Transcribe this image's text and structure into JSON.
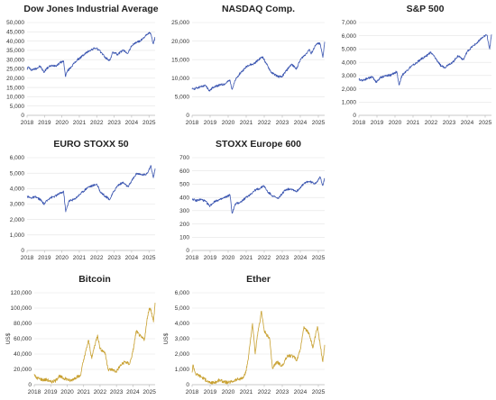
{
  "chart_data": [
    {
      "type": "line",
      "title": "Dow Jones Industrial Average",
      "ylabel": "",
      "ylim": [
        0,
        50000
      ],
      "yticks": [
        0,
        5000,
        10000,
        15000,
        20000,
        25000,
        30000,
        35000,
        40000,
        45000,
        50000
      ],
      "ytick_labels": [
        "0",
        "5,000",
        "10,000",
        "15,000",
        "20,000",
        "25,000",
        "30,000",
        "35,000",
        "40,000",
        "45,000",
        "50,000"
      ],
      "xticks": [
        2018,
        2019,
        2020,
        2021,
        2022,
        2023,
        2024,
        2025
      ],
      "xtick_labels": [
        "2018",
        "2019",
        "2020",
        "2021",
        "2022",
        "2023",
        "2024",
        "2025"
      ],
      "xlim": [
        2018,
        2025.35
      ],
      "color": "#3a55b0",
      "series": [
        {
          "x": [
            2018.0,
            2018.08,
            2018.2,
            2018.4,
            2018.6,
            2018.75,
            2018.97,
            2019.1,
            2019.3,
            2019.5,
            2019.7,
            2019.9,
            2020.1,
            2020.2,
            2020.3,
            2020.5,
            2020.7,
            2020.9,
            2021.0,
            2021.3,
            2021.6,
            2021.9,
            2022.0,
            2022.3,
            2022.5,
            2022.75,
            2022.9,
            2023.0,
            2023.2,
            2023.5,
            2023.8,
            2024.0,
            2024.3,
            2024.5,
            2024.7,
            2024.9,
            2025.0,
            2025.1,
            2025.25,
            2025.35
          ],
          "y": [
            25000,
            26200,
            24500,
            24800,
            25600,
            26500,
            23200,
            25000,
            26400,
            26800,
            26900,
            28400,
            29200,
            21000,
            23600,
            25800,
            28000,
            30000,
            30600,
            33000,
            35000,
            36200,
            36000,
            33500,
            31000,
            29500,
            33600,
            33800,
            32800,
            35000,
            33500,
            37500,
            39500,
            40000,
            42000,
            43500,
            44500,
            43800,
            38500,
            42000
          ]
        }
      ]
    },
    {
      "type": "line",
      "title": "NASDAQ Comp.",
      "ylabel": "",
      "ylim": [
        0,
        25000
      ],
      "yticks": [
        0,
        5000,
        10000,
        15000,
        20000,
        25000
      ],
      "ytick_labels": [
        "0",
        "5,000",
        "10,000",
        "15,000",
        "20,000",
        "25,000"
      ],
      "xticks": [
        2018,
        2019,
        2020,
        2021,
        2022,
        2023,
        2024,
        2025
      ],
      "xtick_labels": [
        "2018",
        "2019",
        "2020",
        "2021",
        "2022",
        "2023",
        "2024",
        "2025"
      ],
      "xlim": [
        2018,
        2025.35
      ],
      "color": "#3a55b0",
      "series": [
        {
          "x": [
            2018.0,
            2018.2,
            2018.5,
            2018.75,
            2018.97,
            2019.2,
            2019.5,
            2019.8,
            2020.1,
            2020.22,
            2020.4,
            2020.6,
            2020.9,
            2021.1,
            2021.4,
            2021.7,
            2021.9,
            2022.1,
            2022.4,
            2022.5,
            2022.75,
            2022.97,
            2023.2,
            2023.5,
            2023.8,
            2024.0,
            2024.3,
            2024.5,
            2024.6,
            2024.8,
            2025.0,
            2025.1,
            2025.25,
            2025.35
          ],
          "y": [
            7000,
            7300,
            7700,
            8000,
            6600,
            7700,
            8100,
            8400,
            9500,
            7000,
            9500,
            11000,
            12500,
            13500,
            13800,
            15000,
            15800,
            14000,
            11500,
            11200,
            10500,
            10300,
            11900,
            13700,
            12600,
            15000,
            16500,
            17800,
            16500,
            18500,
            19500,
            19200,
            15600,
            19800
          ]
        }
      ]
    },
    {
      "type": "line",
      "title": "S&P 500",
      "ylabel": "",
      "ylim": [
        0,
        7000
      ],
      "yticks": [
        0,
        1000,
        2000,
        3000,
        4000,
        5000,
        6000,
        7000
      ],
      "ytick_labels": [
        "0",
        "1,000",
        "2,000",
        "3,000",
        "4,000",
        "5,000",
        "6,000",
        "7,000"
      ],
      "xticks": [
        2018,
        2019,
        2020,
        2021,
        2022,
        2023,
        2024,
        2025
      ],
      "xtick_labels": [
        "2018",
        "2019",
        "2020",
        "2021",
        "2022",
        "2023",
        "2024",
        "2025"
      ],
      "xlim": [
        2018,
        2025.35
      ],
      "color": "#3a55b0",
      "series": [
        {
          "x": [
            2018.0,
            2018.2,
            2018.5,
            2018.75,
            2018.97,
            2019.2,
            2019.5,
            2019.8,
            2020.1,
            2020.22,
            2020.4,
            2020.6,
            2020.9,
            2021.1,
            2021.4,
            2021.7,
            2021.97,
            2022.2,
            2022.5,
            2022.75,
            2022.97,
            2023.2,
            2023.5,
            2023.8,
            2024.0,
            2024.3,
            2024.5,
            2024.7,
            2024.9,
            2025.0,
            2025.1,
            2025.25,
            2025.35
          ],
          "y": [
            2700,
            2650,
            2800,
            2900,
            2500,
            2850,
            3000,
            3050,
            3300,
            2300,
            3050,
            3300,
            3700,
            3850,
            4200,
            4450,
            4750,
            4400,
            3800,
            3600,
            3850,
            4000,
            4500,
            4200,
            4800,
            5200,
            5400,
            5700,
            5900,
            6000,
            6050,
            5000,
            6100
          ]
        }
      ]
    },
    {
      "type": "line",
      "title": "EURO STOXX 50",
      "ylabel": "",
      "ylim": [
        0,
        6000
      ],
      "yticks": [
        0,
        1000,
        2000,
        3000,
        4000,
        5000,
        6000
      ],
      "ytick_labels": [
        "0",
        "1,000",
        "2,000",
        "3,000",
        "4,000",
        "5,000",
        "6,000"
      ],
      "xticks": [
        2018,
        2019,
        2020,
        2021,
        2022,
        2023,
        2024,
        2025
      ],
      "xtick_labels": [
        "2018",
        "2019",
        "2020",
        "2021",
        "2022",
        "2023",
        "2024",
        "2025"
      ],
      "xlim": [
        2018,
        2025.35
      ],
      "color": "#3a55b0",
      "series": [
        {
          "x": [
            2018.0,
            2018.2,
            2018.5,
            2018.75,
            2018.97,
            2019.3,
            2019.6,
            2019.9,
            2020.1,
            2020.22,
            2020.4,
            2020.7,
            2020.9,
            2021.2,
            2021.5,
            2021.8,
            2022.0,
            2022.2,
            2022.5,
            2022.75,
            2022.97,
            2023.2,
            2023.5,
            2023.8,
            2024.0,
            2024.3,
            2024.5,
            2024.8,
            2025.0,
            2025.1,
            2025.25,
            2025.35
          ],
          "y": [
            3500,
            3400,
            3450,
            3300,
            3000,
            3400,
            3500,
            3700,
            3800,
            2500,
            3200,
            3300,
            3500,
            3800,
            4100,
            4200,
            4300,
            3800,
            3500,
            3300,
            3800,
            4200,
            4400,
            4100,
            4500,
            5000,
            4900,
            4900,
            5200,
            5500,
            4700,
            5300
          ]
        }
      ]
    },
    {
      "type": "line",
      "title": "STOXX Europe 600",
      "ylabel": "",
      "ylim": [
        0,
        700
      ],
      "yticks": [
        0,
        100,
        200,
        300,
        400,
        500,
        600,
        700
      ],
      "ytick_labels": [
        "0",
        "100",
        "200",
        "300",
        "400",
        "500",
        "600",
        "700"
      ],
      "xticks": [
        2018,
        2019,
        2020,
        2021,
        2022,
        2023,
        2024,
        2025
      ],
      "xtick_labels": [
        "2018",
        "2019",
        "2020",
        "2021",
        "2022",
        "2023",
        "2024",
        "2025"
      ],
      "xlim": [
        2018,
        2025.35
      ],
      "color": "#3a55b0",
      "series": [
        {
          "x": [
            2018.0,
            2018.2,
            2018.5,
            2018.75,
            2018.97,
            2019.3,
            2019.6,
            2019.9,
            2020.1,
            2020.22,
            2020.4,
            2020.7,
            2020.9,
            2021.2,
            2021.5,
            2021.8,
            2021.97,
            2022.2,
            2022.5,
            2022.75,
            2022.97,
            2023.2,
            2023.5,
            2023.8,
            2024.0,
            2024.3,
            2024.5,
            2024.8,
            2025.0,
            2025.1,
            2025.25,
            2025.35
          ],
          "y": [
            390,
            375,
            385,
            370,
            335,
            375,
            385,
            405,
            420,
            280,
            350,
            365,
            390,
            420,
            455,
            470,
            490,
            440,
            410,
            390,
            425,
            460,
            465,
            445,
            475,
            515,
            520,
            505,
            530,
            555,
            490,
            545
          ]
        }
      ]
    },
    {
      "type": "line",
      "title": "Bitcoin",
      "ylabel": "US$",
      "ylim": [
        0,
        120000
      ],
      "yticks": [
        0,
        20000,
        40000,
        60000,
        80000,
        100000,
        120000
      ],
      "ytick_labels": [
        "0",
        "20,000",
        "40,000",
        "60,000",
        "80,000",
        "100,000",
        "120,000"
      ],
      "xticks": [
        2018,
        2019,
        2020,
        2021,
        2022,
        2023,
        2024,
        2025
      ],
      "xtick_labels": [
        "2018",
        "2019",
        "2020",
        "2021",
        "2022",
        "2023",
        "2024",
        "2025"
      ],
      "xlim": [
        2018,
        2025.35
      ],
      "color": "#c8a030",
      "series": [
        {
          "x": [
            2018.0,
            2018.1,
            2018.3,
            2018.5,
            2018.8,
            2018.97,
            2019.3,
            2019.5,
            2019.8,
            2020.0,
            2020.2,
            2020.5,
            2020.8,
            2020.97,
            2021.1,
            2021.3,
            2021.5,
            2021.6,
            2021.85,
            2022.0,
            2022.3,
            2022.5,
            2022.8,
            2022.97,
            2023.2,
            2023.5,
            2023.8,
            2024.0,
            2024.2,
            2024.5,
            2024.7,
            2024.9,
            2025.0,
            2025.1,
            2025.25,
            2025.35
          ],
          "y": [
            14000,
            9000,
            8000,
            6500,
            6400,
            3700,
            5000,
            11500,
            8000,
            7200,
            5000,
            9300,
            11500,
            29000,
            40000,
            58000,
            34000,
            45000,
            65000,
            47000,
            42000,
            20000,
            19500,
            16500,
            24000,
            30000,
            27000,
            43000,
            70000,
            62000,
            59000,
            90000,
            100000,
            98000,
            82000,
            107000
          ]
        }
      ]
    },
    {
      "type": "line",
      "title": "Ether",
      "ylabel": "US$",
      "ylim": [
        0,
        6000
      ],
      "yticks": [
        0,
        1000,
        2000,
        3000,
        4000,
        5000,
        6000
      ],
      "ytick_labels": [
        "0",
        "1,000",
        "2,000",
        "3,000",
        "4,000",
        "5,000",
        "6,000"
      ],
      "xticks": [
        2018,
        2019,
        2020,
        2021,
        2022,
        2023,
        2024,
        2025
      ],
      "xtick_labels": [
        "2018",
        "2019",
        "2020",
        "2021",
        "2022",
        "2023",
        "2024",
        "2025"
      ],
      "xlim": [
        2018,
        2025.35
      ],
      "color": "#c8a030",
      "series": [
        {
          "x": [
            2018.0,
            2018.05,
            2018.2,
            2018.4,
            2018.6,
            2018.97,
            2019.3,
            2019.5,
            2019.8,
            2020.0,
            2020.2,
            2020.5,
            2020.8,
            2020.97,
            2021.1,
            2021.35,
            2021.5,
            2021.6,
            2021.85,
            2022.0,
            2022.3,
            2022.45,
            2022.7,
            2022.97,
            2023.3,
            2023.6,
            2023.8,
            2024.0,
            2024.2,
            2024.5,
            2024.7,
            2024.95,
            2025.1,
            2025.25,
            2025.35
          ],
          "y": [
            800,
            1300,
            700,
            600,
            450,
            120,
            150,
            300,
            180,
            130,
            200,
            350,
            400,
            750,
            1600,
            4000,
            2000,
            3000,
            4800,
            3500,
            3000,
            1100,
            1500,
            1200,
            1900,
            1850,
            1600,
            2300,
            3800,
            3300,
            2400,
            3800,
            2600,
            1500,
            2600
          ]
        }
      ]
    }
  ]
}
